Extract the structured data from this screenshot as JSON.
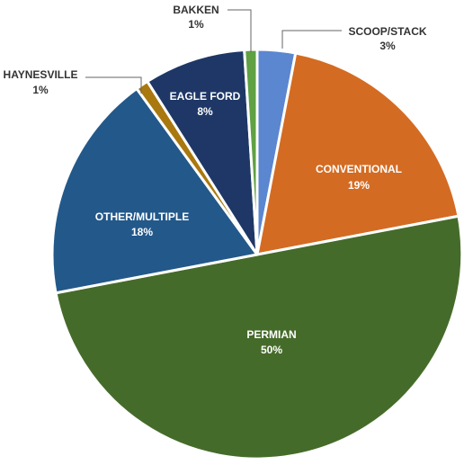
{
  "chart_data": {
    "type": "pie",
    "slices": [
      {
        "name": "SCOOP/STACK",
        "value": 3,
        "value_label": "3%",
        "color": "#5B86D0"
      },
      {
        "name": "CONVENTIONAL",
        "value": 19,
        "value_label": "19%",
        "color": "#D46B22"
      },
      {
        "name": "PERMIAN",
        "value": 50,
        "value_label": "50%",
        "color": "#456B2A"
      },
      {
        "name": "OTHER/MULTIPLE",
        "value": 18,
        "value_label": "18%",
        "color": "#23588A"
      },
      {
        "name": "HAYNESVILLE",
        "value": 1,
        "value_label": "1%",
        "color": "#A9780F"
      },
      {
        "name": "EAGLE FORD",
        "value": 8,
        "value_label": "8%",
        "color": "#1E3766"
      },
      {
        "name": "BAKKEN",
        "value": 1,
        "value_label": "1%",
        "color": "#5FA143"
      }
    ],
    "legend": "none",
    "label_color_inside": "#ffffff",
    "label_color_outside": "#333333"
  }
}
